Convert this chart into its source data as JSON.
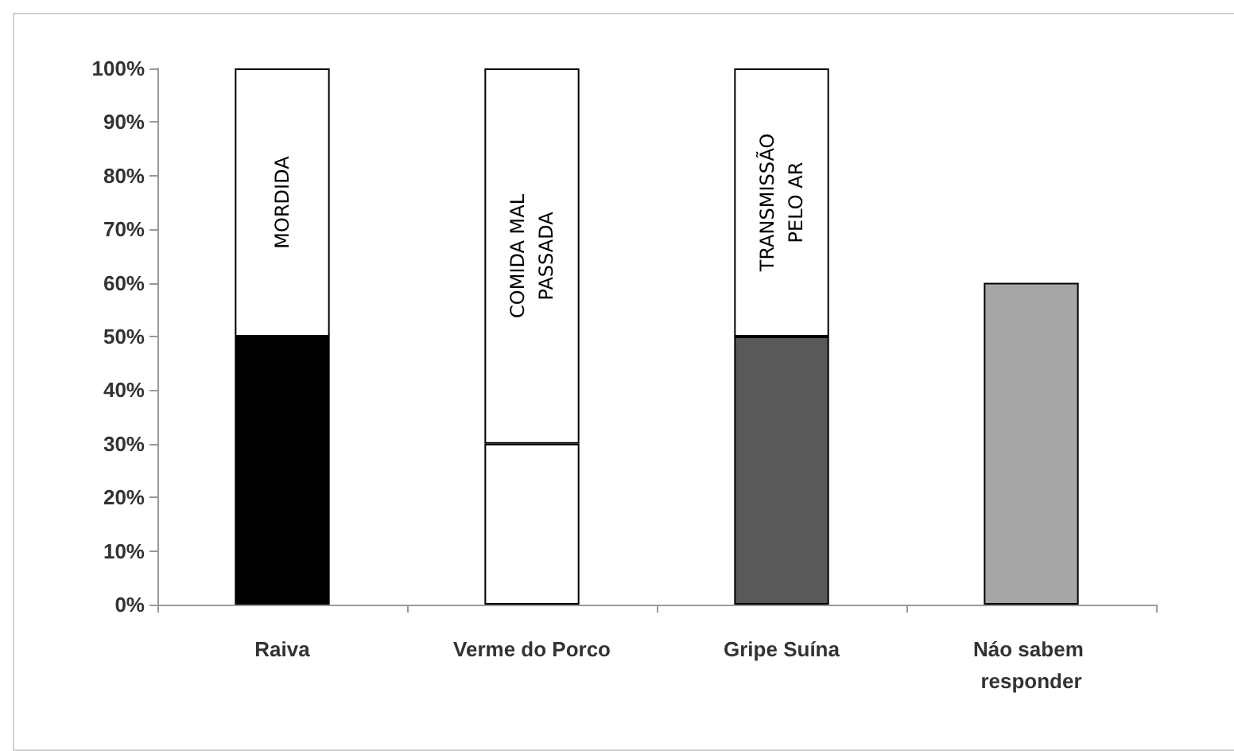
{
  "chart_data": {
    "type": "bar",
    "stacked": true,
    "categories": [
      "Raiva",
      "Verme do Porco",
      "Gripe Suína",
      "Náo sabem responder"
    ],
    "series": [
      {
        "colors": [
          "#000000",
          "#ffffff",
          "#595959",
          "#a6a6a6"
        ],
        "values": [
          50,
          30,
          50,
          60
        ]
      },
      {
        "colors": [
          "#ffffff",
          "#ffffff",
          "#ffffff",
          "#ffffff"
        ],
        "values": [
          50,
          70,
          50,
          null
        ]
      }
    ],
    "ylim": [
      0,
      100
    ],
    "yticks": [
      {
        "value": 0,
        "label": "0%"
      },
      {
        "value": 10,
        "label": "10%"
      },
      {
        "value": 20,
        "label": "20%"
      },
      {
        "value": 30,
        "label": "30%"
      },
      {
        "value": 40,
        "label": "40%"
      },
      {
        "value": 50,
        "label": "50%"
      },
      {
        "value": 60,
        "label": "60%"
      },
      {
        "value": 70,
        "label": "70%"
      },
      {
        "value": 80,
        "label": "80%"
      },
      {
        "value": 90,
        "label": "90%"
      },
      {
        "value": 100,
        "label": "100%"
      }
    ],
    "grid": false,
    "annotations": [
      "MORDIDA",
      "COMIDA MAL\nPASSADA",
      "TRANSMISSÃO\nPELO AR"
    ]
  }
}
